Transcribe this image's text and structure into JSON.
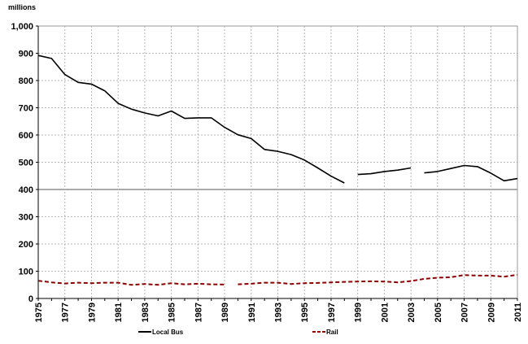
{
  "chart_data": {
    "type": "line",
    "unit_label": "millions",
    "xlim": [
      1975,
      2011
    ],
    "ylim": [
      0,
      1000
    ],
    "y_ticks": [
      0,
      100,
      200,
      300,
      400,
      500,
      600,
      700,
      800,
      900,
      1000
    ],
    "y_tick_labels": [
      "0",
      "100",
      "200",
      "300",
      "400",
      "500",
      "600",
      "700",
      "800",
      "900",
      "1,000"
    ],
    "x_tick_labels": [
      "1975",
      "1977",
      "1979",
      "1981",
      "1983",
      "1985",
      "1987",
      "1989",
      "1991",
      "1993",
      "1995",
      "1997",
      "1999",
      "2001",
      "2003",
      "2005",
      "2007",
      "2009",
      "2011"
    ],
    "reference_line": 400,
    "series": [
      {
        "name": "Local Bus",
        "color": "#000000",
        "dashed": false,
        "segments": [
          {
            "x": [
              1975,
              1976,
              1977,
              1978,
              1979,
              1980,
              1981,
              1982,
              1983,
              1984,
              1985,
              1986,
              1987,
              1988,
              1989,
              1990,
              1991,
              1992,
              1993,
              1994,
              1995,
              1996,
              1997,
              1998
            ],
            "y": [
              892,
              881,
              822,
              793,
              787,
              762,
              716,
              695,
              681,
              670,
              688,
              661,
              663,
              663,
              628,
              601,
              587,
              547,
              540,
              528,
              508,
              479,
              449,
              424
            ]
          },
          {
            "x": [
              1999,
              2000,
              2001,
              2002,
              2003
            ],
            "y": [
              455,
              458,
              466,
              471,
              479
            ]
          },
          {
            "x": [
              2004,
              2005,
              2006,
              2007,
              2008,
              2009,
              2010,
              2011
            ],
            "y": [
              461,
              466,
              477,
              488,
              484,
              460,
              432,
              440
            ]
          }
        ]
      },
      {
        "name": "Rail",
        "color": "#8b0000",
        "dashed": true,
        "segments": [
          {
            "x": [
              1975,
              1976,
              1977,
              1978,
              1979,
              1980,
              1981,
              1982,
              1983,
              1984,
              1985,
              1986,
              1987,
              1988,
              1989
            ],
            "y": [
              65,
              59,
              55,
              58,
              56,
              58,
              58,
              50,
              53,
              50,
              56,
              52,
              54,
              52,
              51
            ]
          },
          {
            "x": [
              1990,
              1991,
              1992,
              1993,
              1994,
              1995,
              1996,
              1997,
              1998,
              1999,
              2000,
              2001,
              2002,
              2003,
              2004,
              2005,
              2006,
              2007,
              2008,
              2009,
              2010,
              2011
            ],
            "y": [
              52,
              54,
              58,
              58,
              53,
              56,
              57,
              59,
              61,
              62,
              63,
              62,
              59,
              64,
              72,
              76,
              78,
              86,
              84,
              84,
              80,
              87
            ]
          }
        ]
      }
    ]
  }
}
